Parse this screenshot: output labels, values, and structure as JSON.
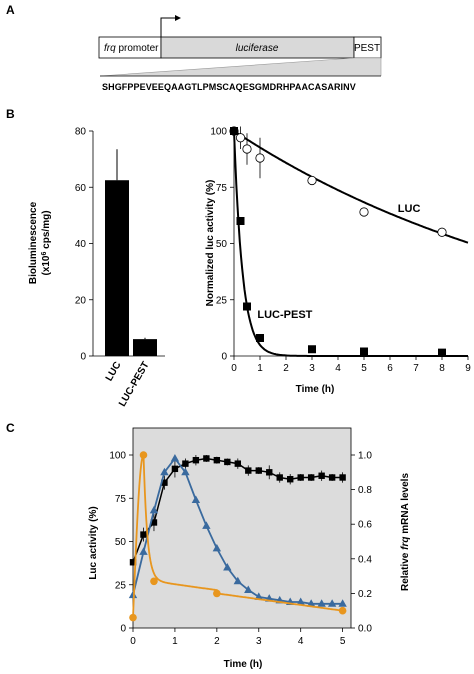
{
  "panels": {
    "A": {
      "letter": "A",
      "construct": {
        "promoter_italic": "frq",
        "promoter_suffix": " promoter",
        "reporter": "luciferase",
        "tag": "PEST"
      },
      "sequence": "SHGFPPEVEEQAAGTLPMSCAQESGMDRHPAACASARINV"
    },
    "B": {
      "letter": "B"
    },
    "C": {
      "letter": "C"
    }
  },
  "colors": {
    "box_fill": "#d9d9d9",
    "panelC_bg": "#dcdcdc",
    "black": "#000000",
    "blue": "#3a6a9e",
    "orange": "#e8961e"
  },
  "chart_data": [
    {
      "id": "B-bar",
      "type": "bar",
      "categories": [
        "LUC",
        "LUC-PEST"
      ],
      "values": [
        62.5,
        6
      ],
      "errors": [
        11,
        0.5
      ],
      "ylabel_line1": "Bioluminescence",
      "ylabel_line2": "(x10",
      "ylabel_sup": "6",
      "ylabel_line2_end": " cps/mg)",
      "ylim": [
        0,
        80
      ],
      "yticks": [
        0,
        20,
        40,
        60,
        80
      ]
    },
    {
      "id": "B-decay",
      "type": "scatter",
      "xlabel": "Time (h)",
      "ylabel": "Normalized luc activity (%)",
      "xlim": [
        0,
        9
      ],
      "ylim": [
        0,
        100
      ],
      "xticks": [
        0,
        1,
        2,
        3,
        4,
        5,
        6,
        7,
        8,
        9
      ],
      "yticks": [
        0,
        25,
        50,
        75,
        100
      ],
      "series": [
        {
          "name": "LUC",
          "marker": "open-circle",
          "points": [
            [
              0,
              100
            ],
            [
              0.25,
              97
            ],
            [
              0.5,
              92
            ],
            [
              1,
              88
            ],
            [
              3,
              78
            ],
            [
              5,
              64
            ],
            [
              8,
              55
            ]
          ],
          "errors": [
            0,
            5,
            7,
            9,
            0,
            0,
            0
          ],
          "fit_halflife": 9.1
        },
        {
          "name": "LUC-PEST",
          "marker": "filled-square",
          "points": [
            [
              0,
              100
            ],
            [
              0.25,
              60
            ],
            [
              0.5,
              22
            ],
            [
              1,
              8
            ],
            [
              3,
              3
            ],
            [
              5,
              2
            ],
            [
              8,
              1.5
            ]
          ],
          "fit_halflife": 0.23
        }
      ]
    },
    {
      "id": "C-time",
      "type": "line",
      "xlabel": "Time (h)",
      "ylabel_left": "Luc activity (%)",
      "ylabel_right_pre": "Relative ",
      "ylabel_right_italic": "frq",
      "ylabel_right_post": " mRNA levels",
      "xlim": [
        0,
        5.2
      ],
      "ylim_left": [
        0,
        100
      ],
      "ylim_right": [
        0,
        1.0
      ],
      "xticks": [
        0,
        1,
        2,
        3,
        4,
        5
      ],
      "yticks_left": [
        0,
        25,
        50,
        75,
        100
      ],
      "yticks_right": [
        0,
        0.2,
        0.4,
        0.6,
        0.8,
        1.0
      ],
      "series": [
        {
          "name": "",
          "color": "black",
          "marker": "square",
          "axis": "left",
          "points": [
            [
              0,
              38
            ],
            [
              0.25,
              54
            ],
            [
              0.5,
              61
            ],
            [
              0.75,
              84
            ],
            [
              1,
              92
            ],
            [
              1.25,
              95
            ],
            [
              1.5,
              97
            ],
            [
              1.75,
              98
            ],
            [
              2,
              97
            ],
            [
              2.25,
              96
            ],
            [
              2.5,
              95
            ],
            [
              2.75,
              91
            ],
            [
              3,
              91
            ],
            [
              3.25,
              90
            ],
            [
              3.5,
              87
            ],
            [
              3.75,
              86
            ],
            [
              4,
              87
            ],
            [
              4.25,
              87
            ],
            [
              4.5,
              88
            ],
            [
              4.75,
              87
            ],
            [
              5,
              87
            ]
          ],
          "errors": [
            2,
            4,
            5,
            4,
            5,
            3,
            3,
            2,
            2,
            2,
            3,
            3,
            2,
            4,
            3,
            3,
            2,
            2,
            3,
            2,
            3
          ]
        },
        {
          "name": "",
          "color": "blue",
          "marker": "triangle",
          "axis": "left",
          "points": [
            [
              0,
              19
            ],
            [
              0.25,
              44
            ],
            [
              0.5,
              68
            ],
            [
              0.75,
              90
            ],
            [
              1,
              98
            ],
            [
              1.25,
              90
            ],
            [
              1.5,
              74
            ],
            [
              1.75,
              59
            ],
            [
              2,
              46
            ],
            [
              2.25,
              35
            ],
            [
              2.5,
              27
            ],
            [
              2.75,
              22
            ],
            [
              3,
              18
            ],
            [
              3.25,
              17
            ],
            [
              3.5,
              16
            ],
            [
              3.75,
              15
            ],
            [
              4,
              15
            ],
            [
              4.25,
              14
            ],
            [
              4.5,
              14
            ],
            [
              4.75,
              14
            ],
            [
              5,
              14
            ]
          ]
        },
        {
          "name": "",
          "color": "orange",
          "marker": "circle",
          "axis": "right",
          "points": [
            [
              0,
              0.06
            ],
            [
              0.25,
              1.0
            ],
            [
              0.5,
              0.27
            ],
            [
              2,
              0.2
            ],
            [
              5,
              0.1
            ]
          ]
        }
      ]
    }
  ]
}
